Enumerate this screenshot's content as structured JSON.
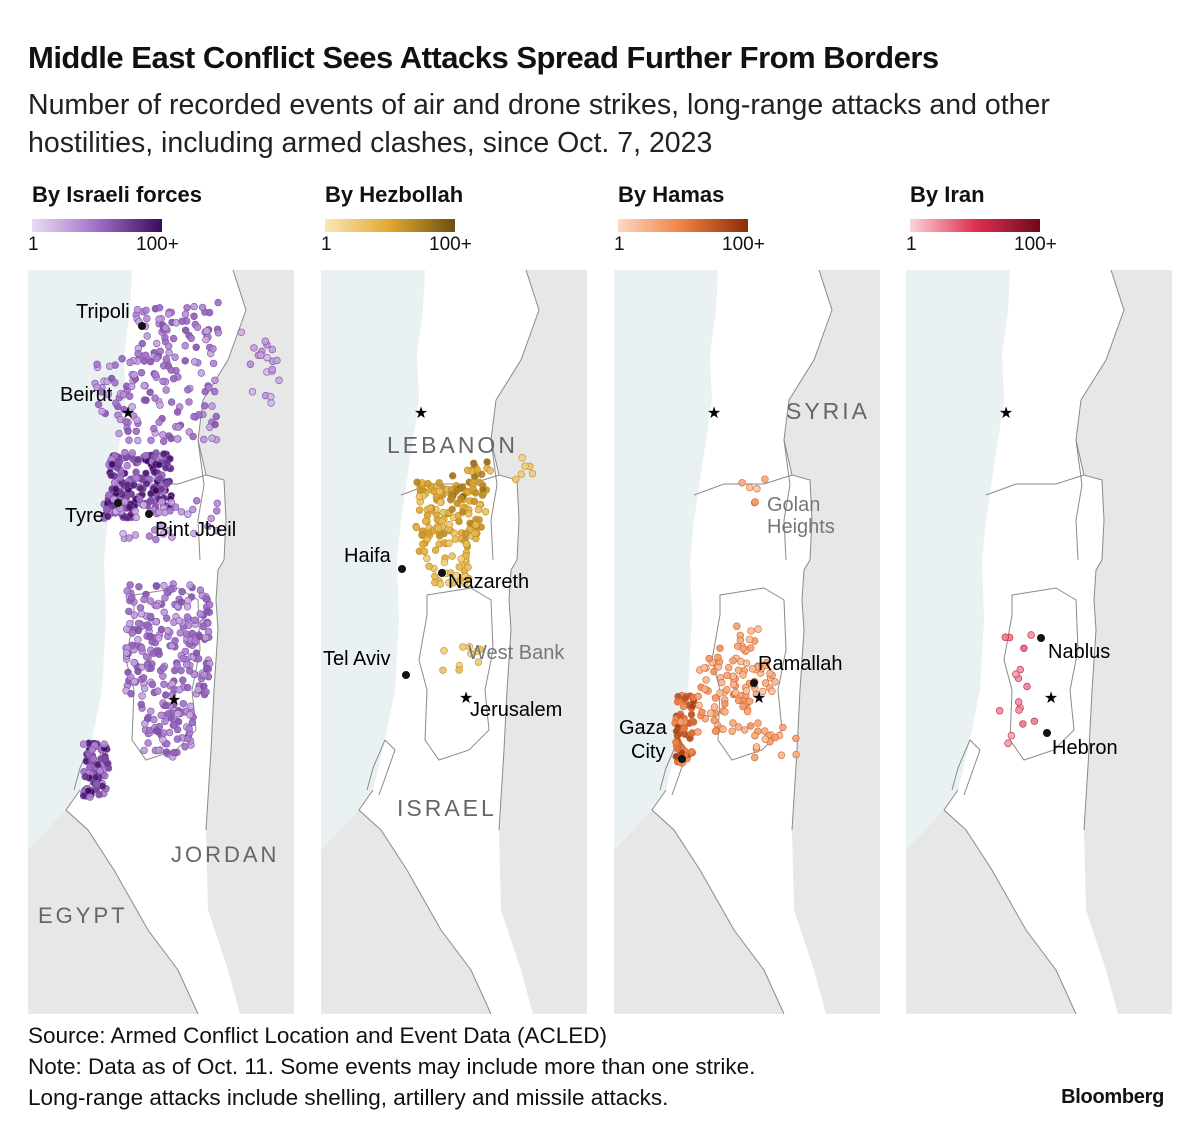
{
  "title": "Middle East Conflict Sees Attacks Spread Further From Borders",
  "subtitle": "Number of recorded events of air and drone strikes, long-range attacks and other hostilities, including armed clashes, since Oct. 7, 2023",
  "legend": {
    "min": "1",
    "max": "100+"
  },
  "panels": [
    {
      "title": "By Israeli forces",
      "colors": [
        "#e9dcf3",
        "#a070c8",
        "#3a0a5e"
      ]
    },
    {
      "title": "By Hezbollah",
      "colors": [
        "#fbe7b5",
        "#e0a830",
        "#6e4f10"
      ]
    },
    {
      "title": "By Hamas",
      "colors": [
        "#fbd9c4",
        "#ef8040",
        "#8a2c08"
      ]
    },
    {
      "title": "By Iran",
      "colors": [
        "#fbd3da",
        "#e03050",
        "#6e0a1c"
      ]
    }
  ],
  "place_labels": {
    "panel1": [
      "Tripoli",
      "Beirut",
      "Tyre",
      "Bint Jbeil",
      "JORDAN",
      "EGYPT"
    ],
    "panel2": [
      "LEBANON",
      "Haifa",
      "Nazareth",
      "Tel Aviv",
      "West Bank",
      "Jerusalem",
      "ISRAEL"
    ],
    "panel3": [
      "SYRIA",
      "Golan",
      "Heights",
      "Ramallah",
      "Gaza",
      "City"
    ],
    "panel4": [
      "Nablus",
      "Hebron"
    ]
  },
  "footer": {
    "source": "Source: Armed Conflict Location and Event Data (ACLED)",
    "note1": "Note: Data as of Oct. 11. Some events may include more than one strike.",
    "note2": "Long-range attacks include shelling, artillery and missile attacks."
  },
  "brand": "Bloomberg"
}
